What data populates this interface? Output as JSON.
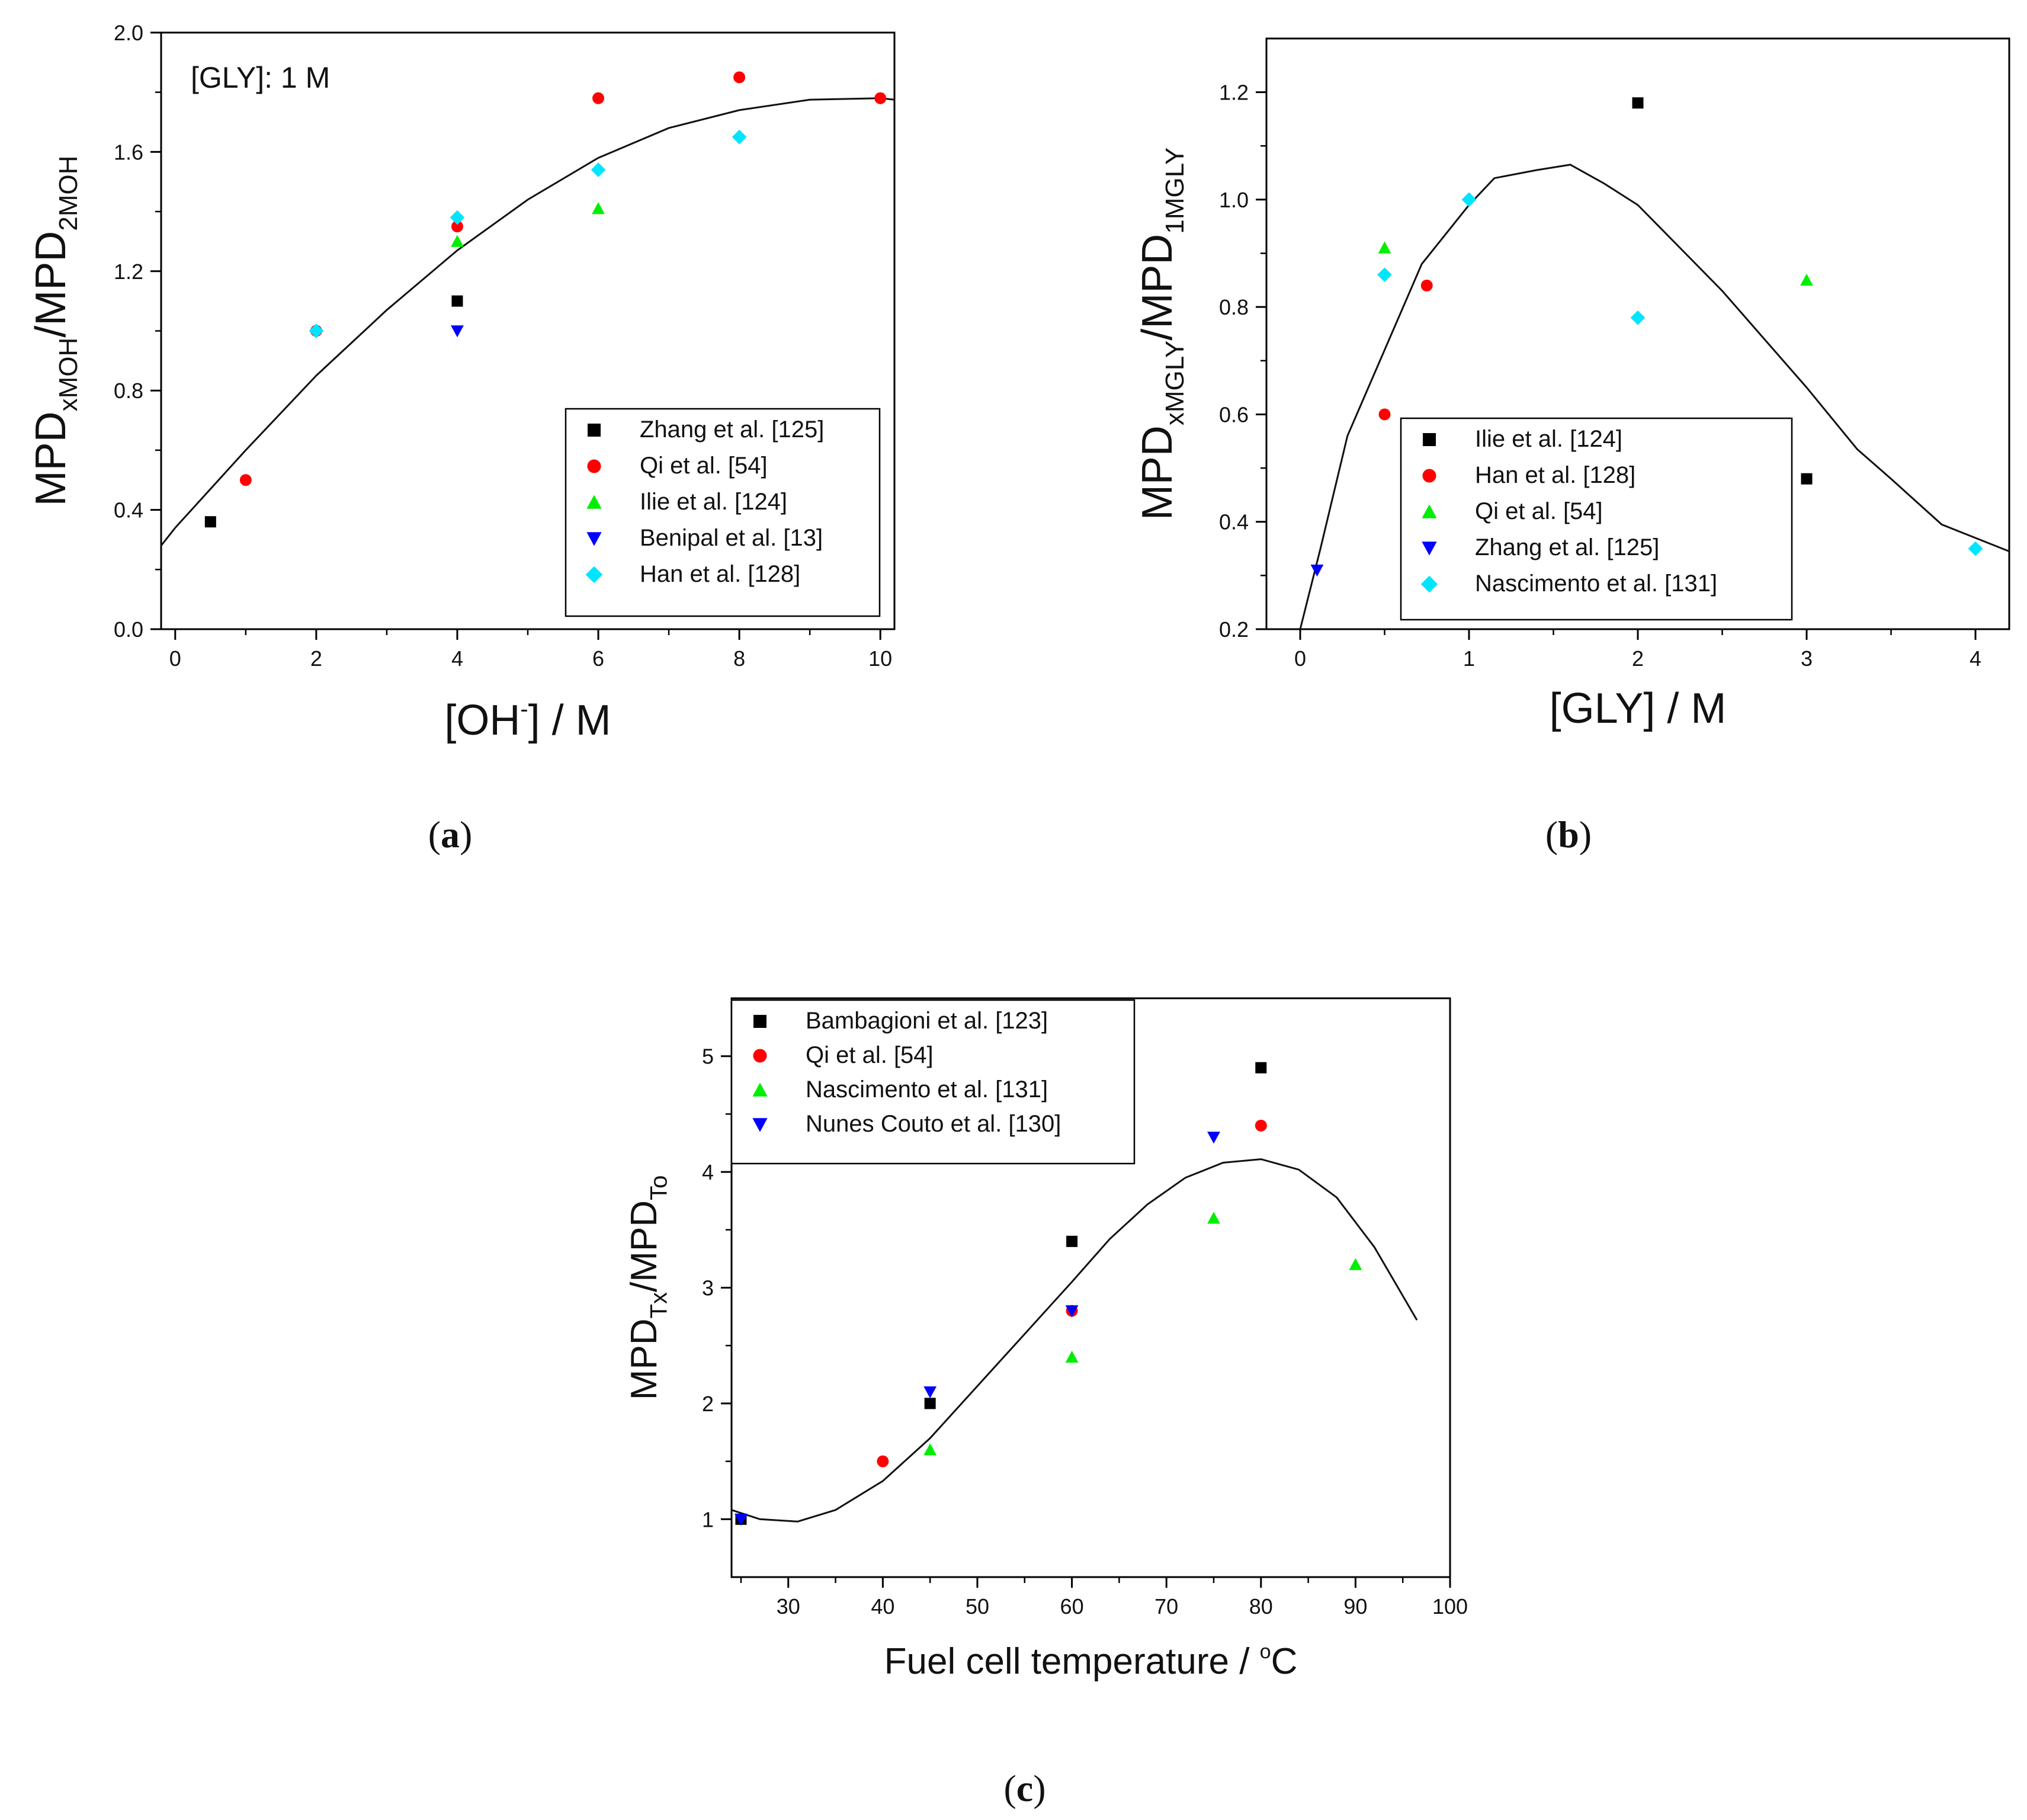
{
  "chart_data": [
    {
      "id": "a",
      "type": "scatter",
      "caption_letter": "a",
      "annotation": "[GLY]: 1 M",
      "xlabel": "[OH] / M",
      "xlabel_main": "[OH",
      "xlabel_sup": "-",
      "xlabel_tail": "] / M",
      "ylabel_parts": [
        "MPD",
        "xMOH",
        "/MPD",
        "2MOH"
      ],
      "xlim": [
        -0.2,
        10.2
      ],
      "ylim": [
        0,
        2.0
      ],
      "xticks": [
        0,
        2,
        4,
        6,
        8,
        10
      ],
      "yticks": [
        0.0,
        0.4,
        0.8,
        1.2,
        1.6,
        2.0
      ],
      "ytick_labels": [
        "0.0",
        "0.4",
        "0.8",
        "1.2",
        "1.6",
        "2.0"
      ],
      "legend_position": "bottom-right",
      "series": [
        {
          "name": "Zhang et al. [125]",
          "marker": "square",
          "color": "#000000",
          "points": [
            [
              0.5,
              0.36
            ],
            [
              4,
              1.1
            ]
          ]
        },
        {
          "name": "Qi et al. [54]",
          "marker": "circle",
          "color": "#ff0000",
          "points": [
            [
              1,
              0.5
            ],
            [
              2,
              1.0
            ],
            [
              4,
              1.35
            ],
            [
              6,
              1.78
            ],
            [
              8,
              1.85
            ],
            [
              10,
              1.78
            ]
          ]
        },
        {
          "name": "Ilie et al. [124]",
          "marker": "triangle-up",
          "color": "#00ee00",
          "points": [
            [
              4,
              1.3
            ],
            [
              6,
              1.41
            ]
          ]
        },
        {
          "name": "Benipal et al. [13]",
          "marker": "triangle-down",
          "color": "#0000ff",
          "points": [
            [
              4,
              1.0
            ]
          ]
        },
        {
          "name": "Han et al. [128]",
          "marker": "diamond",
          "color": "#00e5ff",
          "points": [
            [
              2,
              1.0
            ],
            [
              4,
              1.38
            ],
            [
              6,
              1.54
            ],
            [
              8,
              1.65
            ]
          ]
        }
      ],
      "fit_curve": [
        [
          -0.2,
          0.28
        ],
        [
          0,
          0.34
        ],
        [
          1,
          0.6
        ],
        [
          2,
          0.85
        ],
        [
          3,
          1.07
        ],
        [
          4,
          1.27
        ],
        [
          5,
          1.44
        ],
        [
          6,
          1.58
        ],
        [
          7,
          1.68
        ],
        [
          8,
          1.74
        ],
        [
          9,
          1.775
        ],
        [
          10,
          1.78
        ],
        [
          10.2,
          1.775
        ]
      ]
    },
    {
      "id": "b",
      "type": "scatter",
      "caption_letter": "b",
      "xlabel": "[GLY] / M",
      "ylabel_parts": [
        "MPD",
        "xMGLY",
        "/MPD",
        "1MGLY"
      ],
      "xlim": [
        -0.2,
        4.2
      ],
      "ylim": [
        0.2,
        1.3
      ],
      "xticks": [
        0,
        1,
        2,
        3,
        4
      ],
      "yticks": [
        0.2,
        0.4,
        0.6,
        0.8,
        1.0,
        1.2
      ],
      "ytick_labels": [
        "0.2",
        "0.4",
        "0.6",
        "0.8",
        "1.0",
        "1.2"
      ],
      "legend_position": "bottom-left",
      "series": [
        {
          "name": "Ilie et al. [124]",
          "marker": "square",
          "color": "#000000",
          "points": [
            [
              2,
              1.18
            ],
            [
              3,
              0.48
            ]
          ]
        },
        {
          "name": "Han et al. [128]",
          "marker": "circle",
          "color": "#ff0000",
          "points": [
            [
              0.5,
              0.6
            ],
            [
              0.75,
              0.84
            ]
          ]
        },
        {
          "name": "Qi et al. [54]",
          "marker": "triangle-up",
          "color": "#00ee00",
          "points": [
            [
              0.5,
              0.91
            ],
            [
              3,
              0.85
            ]
          ]
        },
        {
          "name": "Zhang et al. [125]",
          "marker": "triangle-down",
          "color": "#0000ff",
          "points": [
            [
              0.1,
              0.31
            ]
          ]
        },
        {
          "name": "Nascimento et al. [131]",
          "marker": "diamond",
          "color": "#00e5ff",
          "points": [
            [
              0.5,
              0.86
            ],
            [
              1,
              1.0
            ],
            [
              2,
              0.78
            ],
            [
              4,
              0.35
            ]
          ]
        }
      ],
      "fit_curve": [
        [
          0,
          0.2
        ],
        [
          0.12,
          0.35
        ],
        [
          0.28,
          0.56
        ],
        [
          0.5,
          0.72
        ],
        [
          0.72,
          0.88
        ],
        [
          1,
          0.99
        ],
        [
          1.15,
          1.04
        ],
        [
          1.4,
          1.055
        ],
        [
          1.6,
          1.065
        ],
        [
          1.8,
          1.03
        ],
        [
          2,
          0.99
        ],
        [
          2.25,
          0.91
        ],
        [
          2.5,
          0.83
        ],
        [
          2.75,
          0.74
        ],
        [
          3,
          0.65
        ],
        [
          3.3,
          0.535
        ],
        [
          3.5,
          0.48
        ],
        [
          3.8,
          0.395
        ],
        [
          4.2,
          0.345
        ]
      ]
    },
    {
      "id": "c",
      "type": "scatter",
      "caption_letter": "c",
      "xlabel": "Fuel cell temperature / °C",
      "xlabel_main": "Fuel cell temperature / ",
      "xlabel_sup": "o",
      "xlabel_tail": "C",
      "ylabel_parts": [
        "MPD",
        "Tx",
        "/MPD",
        "To"
      ],
      "xlim": [
        24,
        100
      ],
      "ylim": [
        0.5,
        5.5
      ],
      "xticks": [
        30,
        40,
        50,
        60,
        70,
        80,
        90,
        100
      ],
      "yticks": [
        1,
        2,
        3,
        4,
        5
      ],
      "ytick_labels": [
        "1",
        "2",
        "3",
        "4",
        "5"
      ],
      "legend_position": "top-left",
      "series": [
        {
          "name": "Bambagioni et al. [123]",
          "marker": "square",
          "color": "#000000",
          "points": [
            [
              25,
              1.0
            ],
            [
              45,
              2.0
            ],
            [
              60,
              3.4
            ],
            [
              80,
              4.9
            ]
          ]
        },
        {
          "name": "Qi et al. [54]",
          "marker": "circle",
          "color": "#ff0000",
          "points": [
            [
              40,
              1.5
            ],
            [
              60,
              2.8
            ],
            [
              80,
              4.4
            ]
          ]
        },
        {
          "name": "Nascimento et al. [131]",
          "marker": "triangle-up",
          "color": "#00ee00",
          "points": [
            [
              45,
              1.6
            ],
            [
              60,
              2.4
            ],
            [
              75,
              3.6
            ],
            [
              90,
              3.2
            ]
          ]
        },
        {
          "name": "Nunes Couto et al. [130]",
          "marker": "triangle-down",
          "color": "#0000ff",
          "points": [
            [
              25,
              1.0
            ],
            [
              45,
              2.1
            ],
            [
              60,
              2.8
            ],
            [
              75,
              4.3
            ]
          ]
        }
      ],
      "fit_curve": [
        [
          24,
          1.08
        ],
        [
          27,
          1.0
        ],
        [
          31,
          0.98
        ],
        [
          35,
          1.08
        ],
        [
          40,
          1.33
        ],
        [
          45,
          1.7
        ],
        [
          50,
          2.15
        ],
        [
          55,
          2.6
        ],
        [
          60,
          3.05
        ],
        [
          64,
          3.42
        ],
        [
          68,
          3.72
        ],
        [
          72,
          3.95
        ],
        [
          76,
          4.08
        ],
        [
          80,
          4.11
        ],
        [
          84,
          4.02
        ],
        [
          88,
          3.78
        ],
        [
          92,
          3.35
        ],
        [
          96.5,
          2.72
        ]
      ]
    }
  ]
}
